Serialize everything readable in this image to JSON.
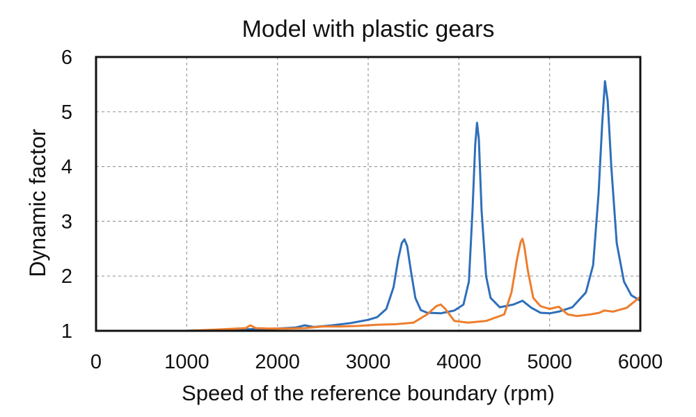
{
  "chart_data": {
    "type": "line",
    "title": "Model with plastic gears",
    "xlabel": "Speed of the reference boundary (rpm)",
    "ylabel": "Dynamic factor",
    "xlim": [
      0,
      6000
    ],
    "ylim": [
      1,
      6
    ],
    "xticks": [
      0,
      1000,
      2000,
      3000,
      4000,
      5000,
      6000
    ],
    "yticks": [
      1,
      2,
      3,
      4,
      5,
      6
    ],
    "grid": true,
    "colors": {
      "series_blue": "#2e6fba",
      "series_orange": "#ee7d2c",
      "grid": "#9a9a9a",
      "frame": "#111111"
    },
    "series": [
      {
        "color": "#2e6fba",
        "x": [
          0,
          500,
          1000,
          1500,
          1700,
          2000,
          2200,
          2300,
          2400,
          2600,
          2800,
          3000,
          3100,
          3200,
          3280,
          3330,
          3370,
          3400,
          3430,
          3470,
          3520,
          3580,
          3650,
          3800,
          3950,
          4050,
          4110,
          4150,
          4180,
          4200,
          4220,
          4250,
          4300,
          4350,
          4450,
          4600,
          4700,
          4800,
          4900,
          5000,
          5100,
          5250,
          5400,
          5480,
          5540,
          5580,
          5610,
          5640,
          5680,
          5740,
          5820,
          5900,
          6000
        ],
        "y": [
          1.0,
          1.0,
          1.0,
          1.02,
          1.03,
          1.04,
          1.06,
          1.1,
          1.07,
          1.1,
          1.14,
          1.2,
          1.25,
          1.4,
          1.8,
          2.3,
          2.6,
          2.67,
          2.55,
          2.1,
          1.6,
          1.38,
          1.33,
          1.32,
          1.37,
          1.48,
          1.9,
          3.2,
          4.4,
          4.8,
          4.5,
          3.2,
          2.0,
          1.6,
          1.43,
          1.48,
          1.55,
          1.42,
          1.33,
          1.32,
          1.35,
          1.43,
          1.7,
          2.2,
          3.5,
          4.8,
          5.56,
          5.2,
          4.0,
          2.6,
          1.9,
          1.65,
          1.55
        ]
      },
      {
        "color": "#ee7d2c",
        "x": [
          0,
          500,
          1000,
          1300,
          1650,
          1700,
          1760,
          1900,
          2100,
          2300,
          2500,
          2700,
          2900,
          3100,
          3300,
          3500,
          3650,
          3750,
          3800,
          3850,
          3950,
          4100,
          4300,
          4500,
          4580,
          4640,
          4680,
          4700,
          4720,
          4760,
          4820,
          4900,
          5000,
          5100,
          5200,
          5300,
          5450,
          5550,
          5600,
          5700,
          5850,
          6000
        ],
        "y": [
          1.0,
          1.0,
          1.0,
          1.02,
          1.05,
          1.1,
          1.05,
          1.04,
          1.04,
          1.05,
          1.08,
          1.08,
          1.09,
          1.11,
          1.12,
          1.15,
          1.3,
          1.45,
          1.48,
          1.4,
          1.18,
          1.15,
          1.18,
          1.3,
          1.7,
          2.3,
          2.62,
          2.68,
          2.55,
          2.1,
          1.6,
          1.45,
          1.4,
          1.44,
          1.3,
          1.27,
          1.3,
          1.33,
          1.37,
          1.35,
          1.42,
          1.62
        ]
      }
    ]
  }
}
